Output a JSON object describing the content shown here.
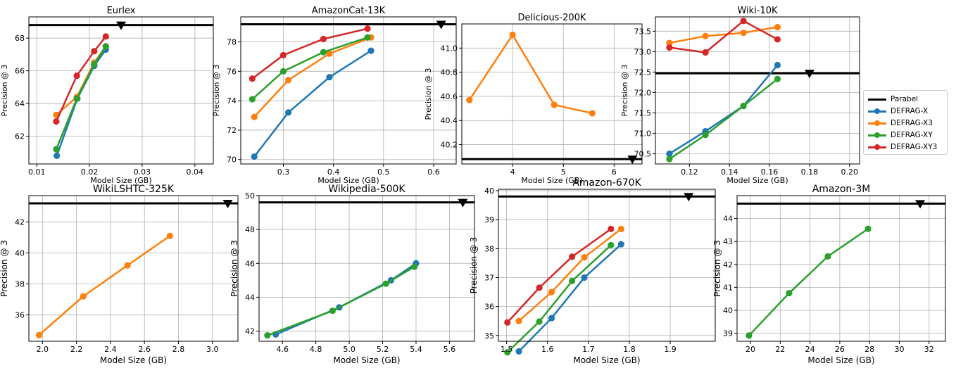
{
  "series_colors": {
    "DEFRAG-X": "#1f77b4",
    "DEFRAG-X3": "#ff7f0e",
    "DEFRAG-XY": "#2ca02c",
    "DEFRAG-XY3": "#d62728",
    "Parabel": "#000000"
  },
  "legend": {
    "items": [
      {
        "name": "Parabel",
        "color": "#000000",
        "style": "line"
      },
      {
        "name": "DEFRAG-X",
        "color": "#1f77b4",
        "style": "line-marker"
      },
      {
        "name": "DEFRAG-X3",
        "color": "#ff7f0e",
        "style": "line-marker"
      },
      {
        "name": "DEFRAG-XY",
        "color": "#2ca02c",
        "style": "line-marker"
      },
      {
        "name": "DEFRAG-XY3",
        "color": "#d62728",
        "style": "line-marker"
      }
    ]
  },
  "chart_data": [
    {
      "type": "line",
      "title": "Eurlex",
      "xlabel": "Model Size (GB)",
      "ylabel": "Precision @ 3",
      "xlim": [
        0.0085,
        0.0435
      ],
      "ylim": [
        60.3,
        69.3
      ],
      "xticks": [
        0.01,
        0.02,
        0.03,
        0.04
      ],
      "xtick_labels": [
        "0.01",
        "0.02",
        "0.03",
        "0.04"
      ],
      "yticks": [
        62,
        64,
        66,
        68
      ],
      "ytick_labels": [
        "62",
        "64",
        "66",
        "68"
      ],
      "parabel": {
        "precision": 68.8,
        "size": 0.026
      },
      "series": [
        {
          "name": "DEFRAG-X",
          "x": [
            0.0138,
            0.0177,
            0.0209,
            0.0231
          ],
          "y": [
            60.8,
            64.3,
            66.3,
            67.3
          ]
        },
        {
          "name": "DEFRAG-X3",
          "x": [
            0.0137,
            0.0176,
            0.0209,
            0.0231
          ],
          "y": [
            63.3,
            64.4,
            66.5,
            67.5
          ]
        },
        {
          "name": "DEFRAG-XY",
          "x": [
            0.0137,
            0.0176,
            0.0209,
            0.0231
          ],
          "y": [
            61.2,
            64.3,
            66.4,
            67.5
          ]
        },
        {
          "name": "DEFRAG-XY3",
          "x": [
            0.0137,
            0.0176,
            0.0209,
            0.0231
          ],
          "y": [
            62.9,
            65.7,
            67.2,
            68.1
          ]
        }
      ]
    },
    {
      "type": "line",
      "title": "AmazonCat-13K",
      "xlabel": "Model Size (GB)",
      "ylabel": "Precision @ 3",
      "xlim": [
        0.215,
        0.645
      ],
      "ylim": [
        69.7,
        79.7
      ],
      "xticks": [
        0.3,
        0.4,
        0.5,
        0.6
      ],
      "xtick_labels": [
        "0.3",
        "0.4",
        "0.5",
        "0.6"
      ],
      "yticks": [
        70,
        72,
        74,
        76,
        78
      ],
      "ytick_labels": [
        "70",
        "72",
        "74",
        "76",
        "78"
      ],
      "parabel": {
        "precision": 79.2,
        "size": 0.615
      },
      "series": [
        {
          "name": "DEFRAG-X",
          "x": [
            0.242,
            0.31,
            0.392,
            0.475
          ],
          "y": [
            70.2,
            73.2,
            75.6,
            77.4
          ]
        },
        {
          "name": "DEFRAG-X3",
          "x": [
            0.242,
            0.31,
            0.392,
            0.475
          ],
          "y": [
            72.9,
            75.4,
            77.2,
            78.3
          ]
        },
        {
          "name": "DEFRAG-XY",
          "x": [
            0.238,
            0.3,
            0.38,
            0.468
          ],
          "y": [
            74.1,
            76.0,
            77.3,
            78.3
          ]
        },
        {
          "name": "DEFRAG-XY3",
          "x": [
            0.238,
            0.3,
            0.38,
            0.468
          ],
          "y": [
            75.5,
            77.1,
            78.2,
            78.9
          ]
        }
      ]
    },
    {
      "type": "line",
      "title": "Delicious-200K",
      "xlabel": "Model Size (GB)",
      "ylabel": "Precision @ 3",
      "xlim": [
        3.0,
        6.55
      ],
      "ylim": [
        40.04,
        41.2
      ],
      "xticks": [
        4,
        5,
        6
      ],
      "xtick_labels": [
        "4",
        "5",
        "6"
      ],
      "yticks": [
        40.2,
        40.4,
        40.6,
        40.8,
        41.0
      ],
      "ytick_labels": [
        "40.2",
        "40.4",
        "40.6",
        "40.8",
        "41.0"
      ],
      "parabel": {
        "precision": 40.08,
        "size": 6.36
      },
      "series": [
        {
          "name": "DEFRAG-X3",
          "x": [
            3.15,
            4.0,
            4.82,
            5.57
          ],
          "y": [
            40.57,
            41.11,
            40.53,
            40.46
          ]
        }
      ]
    },
    {
      "type": "line",
      "title": "Wiki-10K",
      "xlabel": "Model Size (GB)",
      "ylabel": "Precision @ 3",
      "xlim": [
        0.103,
        0.205
      ],
      "ylim": [
        70.25,
        73.85
      ],
      "xticks": [
        0.12,
        0.14,
        0.16,
        0.18,
        0.2
      ],
      "xtick_labels": [
        "0.12",
        "0.14",
        "0.16",
        "0.18",
        "0.20"
      ],
      "yticks": [
        70.5,
        71.0,
        71.5,
        72.0,
        72.5,
        73.0,
        73.5
      ],
      "ytick_labels": [
        "70.5",
        "71.0",
        "71.5",
        "72.0",
        "72.5",
        "73.0",
        "73.5"
      ],
      "parabel": {
        "precision": 72.47,
        "size": 0.18
      },
      "series": [
        {
          "name": "DEFRAG-X",
          "x": [
            0.11,
            0.128,
            0.147,
            0.164
          ],
          "y": [
            70.5,
            71.05,
            71.67,
            72.67
          ]
        },
        {
          "name": "DEFRAG-X3",
          "x": [
            0.11,
            0.128,
            0.147,
            0.164
          ],
          "y": [
            73.21,
            73.38,
            73.46,
            73.6
          ]
        },
        {
          "name": "DEFRAG-XY",
          "x": [
            0.11,
            0.128,
            0.147,
            0.164
          ],
          "y": [
            70.37,
            70.96,
            71.67,
            72.33
          ]
        },
        {
          "name": "DEFRAG-XY3",
          "x": [
            0.11,
            0.128,
            0.147,
            0.164
          ],
          "y": [
            73.1,
            72.98,
            73.75,
            73.3
          ]
        }
      ]
    },
    {
      "type": "line",
      "title": "WikiLSHTC-325K",
      "xlabel": "Model Size (GB)",
      "ylabel": "Precision @ 3",
      "xlim": [
        1.92,
        3.15
      ],
      "ylim": [
        34.3,
        43.7
      ],
      "xticks": [
        2.0,
        2.2,
        2.4,
        2.6,
        2.8,
        3.0
      ],
      "xtick_labels": [
        "2.0",
        "2.2",
        "2.4",
        "2.6",
        "2.8",
        "3.0"
      ],
      "yticks": [
        36,
        38,
        40,
        42
      ],
      "ytick_labels": [
        "36",
        "38",
        "40",
        "42"
      ],
      "parabel": {
        "precision": 43.2,
        "size": 3.09
      },
      "series": [
        {
          "name": "DEFRAG-X3",
          "x": [
            1.98,
            2.24,
            2.5,
            2.75
          ],
          "y": [
            34.7,
            37.2,
            39.2,
            41.1
          ]
        }
      ]
    },
    {
      "type": "line",
      "title": "Wikipedia-500K",
      "xlabel": "Model Size (GB)",
      "ylabel": "Precision @ 3",
      "xlim": [
        4.46,
        5.75
      ],
      "ylim": [
        41.4,
        50.0
      ],
      "xticks": [
        4.6,
        4.8,
        5.0,
        5.2,
        5.4,
        5.6
      ],
      "xtick_labels": [
        "4.6",
        "4.8",
        "5.0",
        "5.2",
        "5.4",
        "5.6"
      ],
      "yticks": [
        42,
        44,
        46,
        48,
        50
      ],
      "ytick_labels": [
        "42",
        "44",
        "46",
        "48",
        "50"
      ],
      "parabel": {
        "precision": 49.6,
        "size": 5.68
      },
      "series": [
        {
          "name": "DEFRAG-X",
          "x": [
            4.56,
            4.94,
            5.25,
            5.4
          ],
          "y": [
            41.8,
            43.4,
            45.0,
            46.0
          ]
        },
        {
          "name": "DEFRAG-XY",
          "x": [
            4.51,
            4.9,
            5.22,
            5.39
          ],
          "y": [
            41.75,
            43.2,
            44.8,
            45.8
          ]
        }
      ]
    },
    {
      "type": "line",
      "title": "Amazon-670K",
      "xlabel": "Model Size (GB)",
      "ylabel": "Precision @ 3",
      "xlim": [
        1.48,
        2.01
      ],
      "ylim": [
        34.8,
        40.05
      ],
      "xticks": [
        1.5,
        1.6,
        1.7,
        1.8,
        1.9
      ],
      "xtick_labels": [
        "1.5",
        "1.6",
        "1.7",
        "1.8",
        "1.9"
      ],
      "yticks": [
        35,
        36,
        37,
        38,
        39,
        40
      ],
      "ytick_labels": [
        "35",
        "36",
        "37",
        "38",
        "39",
        "40"
      ],
      "parabel": {
        "precision": 39.8,
        "size": 1.945
      },
      "series": [
        {
          "name": "DEFRAG-X",
          "x": [
            1.53,
            1.61,
            1.69,
            1.78
          ],
          "y": [
            34.45,
            35.6,
            37.0,
            38.15
          ]
        },
        {
          "name": "DEFRAG-X3",
          "x": [
            1.53,
            1.61,
            1.69,
            1.78
          ],
          "y": [
            35.5,
            36.5,
            37.7,
            38.68
          ]
        },
        {
          "name": "DEFRAG-XY",
          "x": [
            1.502,
            1.58,
            1.66,
            1.755
          ],
          "y": [
            34.42,
            35.48,
            36.88,
            38.12
          ]
        },
        {
          "name": "DEFRAG-XY3",
          "x": [
            1.502,
            1.58,
            1.66,
            1.755
          ],
          "y": [
            35.45,
            36.65,
            37.72,
            38.68
          ]
        }
      ]
    },
    {
      "type": "line",
      "title": "Amazon-3M",
      "xlabel": "Model Size (GB)",
      "ylabel": "Precision @ 3",
      "xlim": [
        19.1,
        33.1
      ],
      "ylim": [
        38.65,
        45.0
      ],
      "xticks": [
        20,
        22,
        24,
        26,
        28,
        30,
        32
      ],
      "xtick_labels": [
        "20",
        "22",
        "24",
        "26",
        "28",
        "30",
        "32"
      ],
      "yticks": [
        39,
        40,
        41,
        42,
        43,
        44
      ],
      "ytick_labels": [
        "39",
        "40",
        "41",
        "42",
        "43",
        "44"
      ],
      "parabel": {
        "precision": 44.65,
        "size": 31.4
      },
      "series": [
        {
          "name": "DEFRAG-XY",
          "x": [
            19.9,
            22.6,
            25.2,
            27.9
          ],
          "y": [
            38.9,
            40.75,
            42.35,
            43.55
          ]
        }
      ]
    }
  ]
}
